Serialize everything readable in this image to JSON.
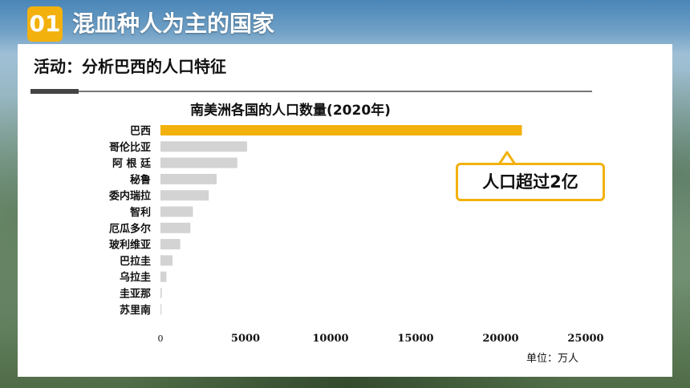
{
  "header": {
    "badge": "01",
    "title": "混血种人为主的国家"
  },
  "activity": {
    "label": "活动：分析巴西的人口特征"
  },
  "colors": {
    "highlight": "#f3b10d",
    "bar": "#d3d3d3",
    "accent": "#f3b10d"
  },
  "chart_data": {
    "type": "bar",
    "orientation": "horizontal",
    "title": "南美洲各国的人口数量(2020年)",
    "categories": [
      "巴西",
      "哥伦比亚",
      "阿 根 廷",
      "秘鲁",
      "委内瑞拉",
      "智利",
      "厄瓜多尔",
      "玻利维亚",
      "巴拉圭",
      "乌拉圭",
      "圭亚那",
      "苏里南"
    ],
    "values": [
      21250,
      5090,
      4520,
      3300,
      2840,
      1910,
      1760,
      1160,
      710,
      350,
      79,
      59
    ],
    "highlight_index": 0,
    "xlim": [
      0,
      25000
    ],
    "xticks": [
      0,
      5000,
      10000,
      15000,
      20000,
      25000
    ],
    "unit_label": "单位：万人",
    "grid": false
  },
  "callout": {
    "text": "人口超过2亿"
  }
}
